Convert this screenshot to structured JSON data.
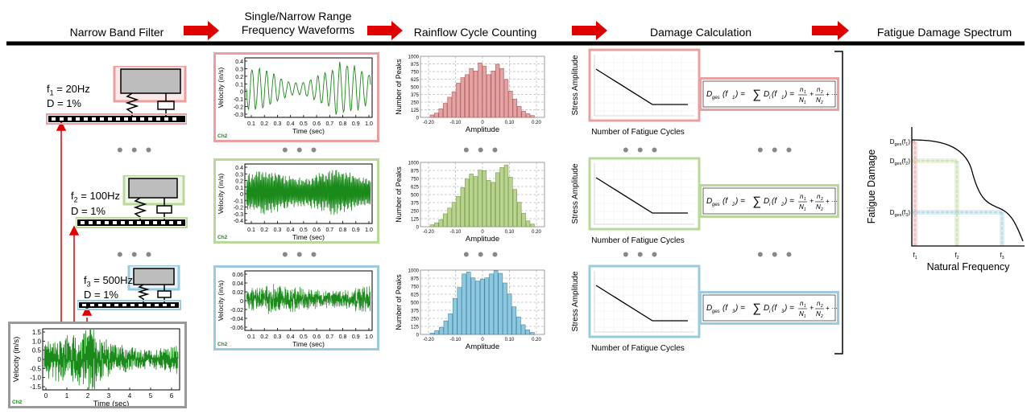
{
  "headers": {
    "filter": "Narrow Band Filter",
    "waveforms_line1": "Single/Narrow Range",
    "waveforms_line2": "Frequency Waveforms",
    "rainflow": "Rainflow Cycle Counting",
    "damage": "Damage Calculation",
    "spectrum": "Fatigue Damage Spectrum"
  },
  "colors": {
    "red": "#e8a0a0",
    "green": "#b9d89a",
    "blue": "#9ccbe0",
    "arrow": "#e00000",
    "wave": "#1a8a1a"
  },
  "oscillators": [
    {
      "freq_label": "f",
      "freq_sub": "1",
      "freq_value": " = 20Hz",
      "damping": "D = 1%"
    },
    {
      "freq_label": "f",
      "freq_sub": "2",
      "freq_value": " = 100Hz",
      "damping": "D = 1%"
    },
    {
      "freq_label": "f",
      "freq_sub": "3",
      "freq_value": " = 500Hz",
      "damping": "D = 1%"
    }
  ],
  "waveforms": [
    {
      "ylabel": "Velocity (in/s)",
      "xlabel": "Time (sec)",
      "channel": "Ch2",
      "yticks": [
        "0.4",
        "0.3",
        "0.2",
        "0.1",
        "0",
        "-0.1",
        "-0.2",
        "-0.3"
      ],
      "xticks": [
        "0.1",
        "0.2",
        "0.3",
        "0.4",
        "0.5",
        "0.6",
        "0.7",
        "0.8",
        "0.9",
        "1.0"
      ]
    },
    {
      "ylabel": "Velocity (in/s)",
      "xlabel": "Time (sec)",
      "channel": "Ch2",
      "yticks": [
        "0.4",
        "0.3",
        "0.2",
        "0.1",
        "0",
        "-0.1",
        "-0.2",
        "-0.3",
        "-0.4"
      ],
      "xticks": [
        "0.1",
        "0.2",
        "0.3",
        "0.4",
        "0.5",
        "0.6",
        "0.7",
        "0.8",
        "0.9",
        "1.0"
      ]
    },
    {
      "ylabel": "Velocity (in/s)",
      "xlabel": "Time (sec)",
      "channel": "Ch2",
      "yticks": [
        "0.06",
        "0.04",
        "0.02",
        "0",
        "-0.02",
        "-0.04",
        "-0.06"
      ],
      "xticks": [
        "0.1",
        "0.2",
        "0.3",
        "0.4",
        "0.5",
        "0.6",
        "0.7",
        "0.8",
        "0.9",
        "1.0"
      ]
    }
  ],
  "input_signal": {
    "ylabel": "Velocity (in/s)",
    "xlabel": "Time (sec)",
    "channel": "Ch2",
    "yticks": [
      "1.5",
      "1.0",
      "0.5",
      "0",
      "-0.5",
      "-1.0",
      "-1.5"
    ],
    "xticks": [
      "0",
      "1",
      "2",
      "3",
      "4",
      "5",
      "6"
    ]
  },
  "histograms": [
    {
      "ylabel": "Number of Peaks",
      "xlabel": "Amplitude",
      "yticks": [
        "1000",
        "875",
        "750",
        "625",
        "500",
        "375",
        "250",
        "125",
        "0"
      ],
      "xticks": [
        "-0.20",
        "-0.10",
        "0",
        "0.10",
        "0.20"
      ],
      "values": [
        40,
        70,
        140,
        230,
        330,
        420,
        560,
        650,
        700,
        800,
        760,
        890,
        840,
        700,
        760,
        870,
        800,
        620,
        430,
        300,
        180,
        100,
        60,
        30
      ]
    },
    {
      "ylabel": "Number of Peaks",
      "xlabel": "Amplitude",
      "yticks": [
        "1000",
        "875",
        "750",
        "625",
        "500",
        "375",
        "250",
        "125",
        "0"
      ],
      "xticks": [
        "-0.20",
        "-0.10",
        "0",
        "0.10",
        "0.20"
      ],
      "values": [
        30,
        60,
        110,
        200,
        290,
        380,
        470,
        610,
        740,
        820,
        780,
        880,
        870,
        720,
        690,
        840,
        920,
        960,
        770,
        580,
        380,
        210,
        90,
        40
      ]
    },
    {
      "ylabel": "Number of Peaks",
      "xlabel": "Amplitude",
      "yticks": [
        "1000",
        "875",
        "750",
        "625",
        "500",
        "375",
        "250",
        "125",
        "0"
      ],
      "xticks": [
        "-0.20",
        "-0.10",
        "0",
        "0.10",
        "0.20"
      ],
      "values": [
        20,
        60,
        110,
        210,
        320,
        560,
        730,
        940,
        970,
        880,
        830,
        860,
        880,
        940,
        990,
        950,
        800,
        630,
        430,
        270,
        150,
        70,
        30
      ]
    }
  ],
  "sn_curves": [
    {
      "ylabel": "Stress Amplitude",
      "xlabel": "Number of Fatigue Cycles"
    },
    {
      "ylabel": "Stress Amplitude",
      "xlabel": "Number of Fatigue Cycles"
    },
    {
      "ylabel": "Stress Amplitude",
      "xlabel": "Number of Fatigue Cycles"
    }
  ],
  "equations": [
    {
      "lhs": "D",
      "lhs_sub": "ges",
      "arg": "f",
      "arg_sub": "1",
      "sum_term": "D",
      "sum_sub": "i",
      "n1": "n",
      "n1s": "1",
      "N1": "N",
      "N1s": "1",
      "n2": "n",
      "n2s": "2",
      "N2": "N",
      "N2s": "2",
      "tail": "+ ···"
    },
    {
      "lhs": "D",
      "lhs_sub": "ges",
      "arg": "f",
      "arg_sub": "2",
      "sum_term": "D",
      "sum_sub": "i",
      "n1": "n",
      "n1s": "1",
      "N1": "N",
      "N1s": "1",
      "n2": "n",
      "n2s": "2",
      "N2": "N",
      "N2s": "2",
      "tail": "+ ···"
    },
    {
      "lhs": "D",
      "lhs_sub": "ges",
      "arg": "f",
      "arg_sub": "3",
      "sum_term": "D",
      "sum_sub": "i",
      "n1": "n",
      "n1s": "1",
      "N1": "N",
      "N1s": "1",
      "n2": "n",
      "n2s": "2",
      "N2": "N",
      "N2s": "2",
      "tail": "+ ···"
    }
  ],
  "ellipsis": "• • •",
  "spectrum": {
    "ylabel": "Fatigue Damage",
    "xlabel": "Natural Frequency",
    "ylabels": [
      {
        "main": "D",
        "sub": "ges",
        "arg": "(f",
        "argsub": "1",
        "close": ")"
      },
      {
        "main": "D",
        "sub": "ges",
        "arg": "(f",
        "argsub": "2",
        "close": ")"
      },
      {
        "main": "D",
        "sub": "ges",
        "arg": "(f",
        "argsub": "3",
        "close": ")"
      }
    ],
    "xlabels": [
      {
        "main": "f",
        "sub": "1"
      },
      {
        "main": "f",
        "sub": "2"
      },
      {
        "main": "f",
        "sub": "3"
      }
    ]
  }
}
